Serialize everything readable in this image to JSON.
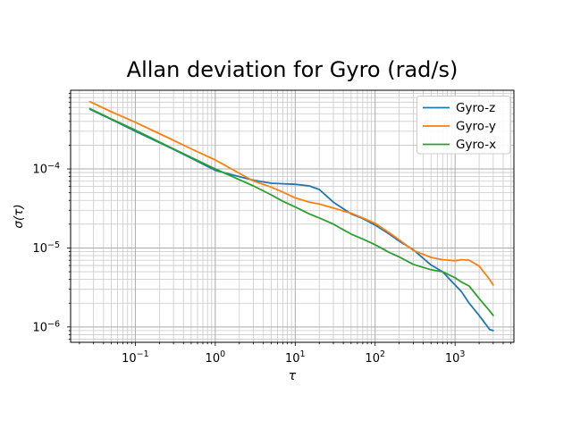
{
  "figure": {
    "title": "Allan deviation for Gyro (rad/s)",
    "background": "#ffffff"
  },
  "chart_data": {
    "type": "line",
    "title": "Allan deviation for Gyro (rad/s)",
    "xlabel": "τ",
    "ylabel": "σ(τ)",
    "x_scale": "log",
    "y_scale": "log",
    "xlim": [
      0.0155,
      5445
    ],
    "ylim": [
      6.4e-07,
      0.00099
    ],
    "grid": "both",
    "legend_position": "upper right",
    "x_major_ticks": [
      0.1,
      1,
      10,
      100,
      1000
    ],
    "y_major_ticks": [
      1e-06,
      1e-05,
      0.0001
    ],
    "tau": [
      0.027,
      0.05,
      0.1,
      0.2,
      0.3,
      0.5,
      1,
      2,
      3,
      5,
      7,
      10,
      15,
      20,
      30,
      50,
      70,
      100,
      150,
      200,
      300,
      500,
      700,
      1000,
      1200,
      1500,
      2000,
      2700,
      3000
    ],
    "series": [
      {
        "name": "Gyro-z",
        "color": "#1f77b4",
        "sigma": [
          0.00057,
          0.000425,
          0.0003,
          0.000215,
          0.000177,
          0.000137,
          9.6e-05,
          8e-05,
          7.2e-05,
          6.6e-05,
          6.5e-05,
          6.4e-05,
          6.1e-05,
          5.5e-05,
          3.8e-05,
          2.7e-05,
          2.35e-05,
          1.95e-05,
          1.5e-05,
          1.22e-05,
          9.5e-06,
          6.1e-06,
          5e-06,
          3.4e-06,
          2.8e-06,
          2e-06,
          1.4e-06,
          9.3e-07,
          9e-07
        ]
      },
      {
        "name": "Gyro-y",
        "color": "#ff7f0e",
        "sigma": [
          0.00071,
          0.00053,
          0.00039,
          0.00028,
          0.00023,
          0.00018,
          0.00013,
          8.8e-05,
          7.05e-05,
          5.9e-05,
          5.1e-05,
          4.3e-05,
          3.8e-05,
          3.6e-05,
          3.2e-05,
          2.75e-05,
          2.4e-05,
          2.05e-05,
          1.56e-05,
          1.27e-05,
          9.3e-06,
          7.6e-06,
          7.1e-06,
          6.9e-06,
          7.1e-06,
          7e-06,
          5.9e-06,
          4e-06,
          3.4e-06
        ]
      },
      {
        "name": "Gyro-x",
        "color": "#2ca02c",
        "sigma": [
          0.00058,
          0.00043,
          0.00031,
          0.00022,
          0.00018,
          0.00014,
          0.0001,
          7.3e-05,
          6.1e-05,
          4.7e-05,
          3.9e-05,
          3.3e-05,
          2.7e-05,
          2.4e-05,
          2e-05,
          1.5e-05,
          1.3e-05,
          1.1e-05,
          8.8e-06,
          7.7e-06,
          6.2e-06,
          5.3e-06,
          5e-06,
          4.2e-06,
          3.7e-06,
          3.3e-06,
          2.3e-06,
          1.6e-06,
          1.4e-06
        ]
      }
    ],
    "colors": {
      "grid_major": "#ababab",
      "grid_minor": "#c9c9c9",
      "spine": "#000000",
      "text": "#000000",
      "legend_border": "#cccccc",
      "legend_fill": "#ffffff"
    }
  }
}
